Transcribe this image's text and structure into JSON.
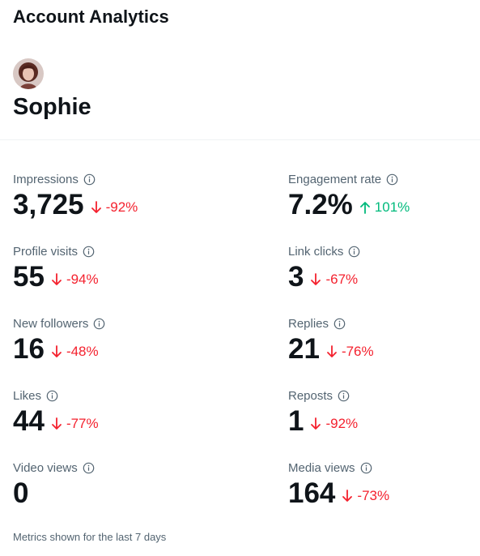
{
  "page": {
    "title": "Account Analytics",
    "footnote": "Metrics shown for the last 7 days"
  },
  "profile": {
    "name": "Sophie",
    "avatar_icon": "user-avatar-photo"
  },
  "colors": {
    "negative": "#f4212e",
    "positive": "#00ba7c",
    "label": "#536471",
    "text": "#0f1419"
  },
  "metrics": [
    {
      "key": "impressions",
      "label": "Impressions",
      "value": "3,725",
      "change": "-92%",
      "direction": "down"
    },
    {
      "key": "engagement-rate",
      "label": "Engagement rate",
      "value": "7.2%",
      "change": "101%",
      "direction": "up"
    },
    {
      "key": "profile-visits",
      "label": "Profile visits",
      "value": "55",
      "change": "-94%",
      "direction": "down"
    },
    {
      "key": "link-clicks",
      "label": "Link clicks",
      "value": "3",
      "change": "-67%",
      "direction": "down"
    },
    {
      "key": "new-followers",
      "label": "New followers",
      "value": "16",
      "change": "-48%",
      "direction": "down"
    },
    {
      "key": "replies",
      "label": "Replies",
      "value": "21",
      "change": "-76%",
      "direction": "down"
    },
    {
      "key": "likes",
      "label": "Likes",
      "value": "44",
      "change": "-77%",
      "direction": "down"
    },
    {
      "key": "reposts",
      "label": "Reposts",
      "value": "1",
      "change": "-92%",
      "direction": "down"
    },
    {
      "key": "video-views",
      "label": "Video views",
      "value": "0",
      "change": "",
      "direction": "none"
    },
    {
      "key": "media-views",
      "label": "Media views",
      "value": "164",
      "change": "-73%",
      "direction": "down"
    }
  ]
}
